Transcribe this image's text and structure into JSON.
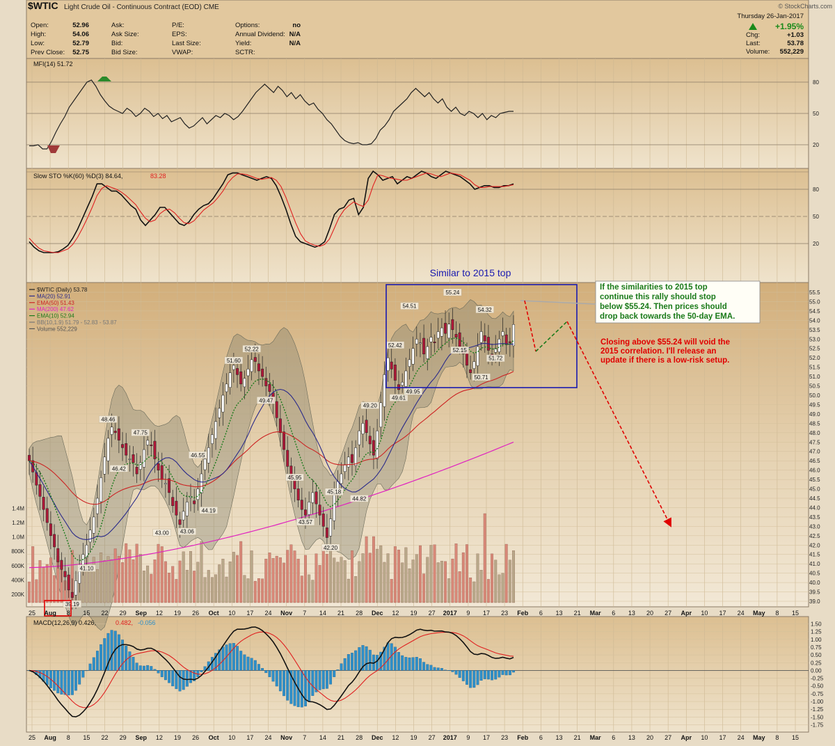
{
  "header": {
    "symbol": "$WTIC",
    "description": "Light Crude Oil - Continuous Contract (EOD)",
    "exchange": "CME",
    "credit": "© StockCharts.com",
    "date": "Thursday 26-Jan-2017",
    "change_pct": "+1.95%",
    "stats": [
      [
        {
          "label": "Open:",
          "value": "52.96"
        },
        {
          "label": "High:",
          "value": "54.06"
        },
        {
          "label": "Low:",
          "value": "52.79"
        },
        {
          "label": "Prev Close:",
          "value": "52.75"
        }
      ],
      [
        {
          "label": "Ask:",
          "value": ""
        },
        {
          "label": "Ask Size:",
          "value": ""
        },
        {
          "label": "Bid:",
          "value": ""
        },
        {
          "label": "Bid Size:",
          "value": ""
        }
      ],
      [
        {
          "label": "P/E:",
          "value": ""
        },
        {
          "label": "EPS:",
          "value": ""
        },
        {
          "label": "Last Size:",
          "value": ""
        },
        {
          "label": "VWAP:",
          "value": ""
        }
      ],
      [
        {
          "label": "Options:",
          "value": "no"
        },
        {
          "label": "Annual Dividend:",
          "value": "N/A"
        },
        {
          "label": "Yield:",
          "value": "N/A"
        },
        {
          "label": "SCTR:",
          "value": ""
        }
      ]
    ],
    "right_stats": [
      {
        "label": "Chg:",
        "value": "+1.03"
      },
      {
        "label": "Last:",
        "value": "53.78"
      },
      {
        "label": "Volume:",
        "value": "552,229"
      }
    ]
  },
  "chart_data": [
    {
      "type": "line",
      "name": "MFI(14)",
      "legend": "MFI(14) 51.72",
      "ylim": [
        0,
        100
      ],
      "yticks": [
        20,
        50,
        80
      ],
      "values": [
        19,
        19,
        20,
        16,
        16,
        23,
        32,
        40,
        47,
        56,
        62,
        68,
        74,
        80,
        82,
        76,
        68,
        62,
        57,
        54,
        52,
        50,
        55,
        52,
        47,
        50,
        55,
        52,
        47,
        50,
        45,
        48,
        42,
        44,
        46,
        40,
        36,
        38,
        42,
        46,
        40,
        44,
        48,
        46,
        50,
        48,
        44,
        47,
        52,
        58,
        64,
        70,
        74,
        78,
        74,
        70,
        76,
        72,
        66,
        70,
        64,
        68,
        62,
        58,
        60,
        54,
        50,
        44,
        40,
        34,
        28,
        24,
        22,
        21,
        22,
        20,
        20,
        21,
        26,
        34,
        38,
        44,
        52,
        56,
        60,
        64,
        70,
        74,
        70,
        66,
        70,
        64,
        60,
        64,
        56,
        52,
        56,
        50,
        48,
        52,
        50,
        46,
        50,
        44,
        48,
        46,
        50,
        51,
        52,
        52
      ]
    },
    {
      "type": "line",
      "name": "Slow STO",
      "legend": "Slow STO %K(60) %D(3) 84.64,",
      "legend_d": "83.28",
      "ylim": [
        0,
        100
      ],
      "yticks": [
        20,
        50,
        80
      ],
      "series": [
        {
          "name": "%K",
          "values": [
            22,
            16,
            12,
            10,
            10,
            10,
            11,
            14,
            18,
            26,
            36,
            48,
            60,
            72,
            86,
            86,
            82,
            78,
            78,
            74,
            68,
            62,
            58,
            46,
            40,
            46,
            52,
            60,
            60,
            54,
            48,
            42,
            40,
            44,
            52,
            58,
            62,
            64,
            70,
            78,
            86,
            96,
            98,
            98,
            96,
            94,
            92,
            90,
            92,
            94,
            92,
            84,
            72,
            58,
            42,
            28,
            22,
            20,
            18,
            16,
            18,
            22,
            36,
            52,
            58,
            60,
            68,
            70,
            52,
            60,
            92,
            100,
            96,
            90,
            92,
            94,
            86,
            90,
            94,
            92,
            96,
            100,
            98,
            94,
            92,
            96,
            100,
            98,
            96,
            94,
            90,
            86,
            80,
            82,
            84,
            84,
            82,
            82,
            84,
            84,
            86
          ]
        },
        {
          "name": "%D",
          "values": [
            26,
            20,
            15,
            12,
            11,
            10,
            10,
            12,
            14,
            19,
            27,
            37,
            48,
            60,
            73,
            81,
            84,
            82,
            80,
            77,
            73,
            68,
            63,
            55,
            48,
            44,
            46,
            53,
            57,
            58,
            54,
            48,
            43,
            42,
            45,
            51,
            57,
            61,
            65,
            71,
            78,
            87,
            93,
            97,
            97,
            96,
            94,
            92,
            91,
            92,
            93,
            90,
            83,
            71,
            57,
            43,
            31,
            23,
            20,
            18,
            17,
            19,
            25,
            37,
            49,
            57,
            62,
            66,
            63,
            61,
            68,
            84,
            96,
            95,
            93,
            92,
            91,
            90,
            90,
            92,
            94,
            96,
            98,
            97,
            95,
            94,
            96,
            98,
            97,
            96,
            93,
            90,
            85,
            82,
            82,
            83,
            83,
            83,
            83,
            84,
            85
          ]
        }
      ]
    },
    {
      "type": "candlestick",
      "name": "$WTIC (Daily)",
      "legend": [
        {
          "text": "$WTIC (Daily) 53.78",
          "color": "#222222"
        },
        {
          "text": "MA(20) 52.91",
          "color": "#2a2a8a"
        },
        {
          "text": "EMA(50) 51.43",
          "color": "#cc2222"
        },
        {
          "text": "MA(200) 47.62",
          "color": "#e020c0"
        },
        {
          "text": "EMA(10) 52.94",
          "color": "#1a7a1a"
        },
        {
          "text": "BB(10,1.9) 51.79 - 52.83 - 53.87",
          "color": "#777777"
        },
        {
          "text": "Volume 552,229",
          "color": "#555555"
        }
      ],
      "ylim": [
        38.5,
        56
      ],
      "yticks": [
        39.0,
        39.5,
        40.0,
        40.5,
        41.0,
        41.5,
        42.0,
        42.5,
        43.0,
        43.5,
        44.0,
        44.5,
        45.0,
        45.5,
        46.0,
        46.5,
        47.0,
        47.5,
        48.0,
        48.5,
        49.0,
        49.5,
        50.0,
        50.5,
        51.0,
        51.5,
        52.0,
        52.5,
        53.0,
        53.5,
        54.0,
        54.5,
        55.0,
        55.5
      ],
      "x_labels": [
        "25",
        "Aug",
        "8",
        "15",
        "22",
        "29",
        "Sep",
        "12",
        "19",
        "26",
        "Oct",
        "10",
        "17",
        "24",
        "Nov",
        "7",
        "14",
        "21",
        "28",
        "Dec",
        "12",
        "19",
        "27",
        "2017",
        "9",
        "17",
        "23",
        "Feb",
        "6",
        "13",
        "21",
        "Mar",
        "6",
        "13",
        "20",
        "27",
        "Apr",
        "10",
        "17",
        "24",
        "May",
        "8",
        "15"
      ],
      "closes": [
        46.5,
        45.9,
        45.2,
        44.6,
        43.9,
        43.2,
        42.5,
        41.9,
        41.1,
        40.7,
        40.3,
        39.6,
        39.2,
        40.1,
        40.8,
        41.5,
        42.0,
        42.8,
        43.5,
        44.5,
        45.6,
        46.7,
        47.7,
        48.3,
        48.0,
        47.6,
        47.2,
        46.8,
        46.6,
        46.4,
        45.8,
        46.4,
        47.1,
        47.6,
        47.3,
        46.6,
        46.0,
        45.5,
        45.3,
        44.8,
        44.1,
        43.6,
        43.1,
        43.8,
        44.3,
        44.6,
        44.2,
        45.0,
        45.8,
        46.6,
        47.2,
        47.9,
        48.6,
        49.3,
        50.0,
        50.6,
        51.2,
        51.6,
        51.1,
        50.6,
        50.9,
        51.4,
        51.9,
        51.8,
        51.3,
        51.0,
        50.5,
        50.2,
        49.6,
        48.8,
        48.0,
        47.1,
        46.2,
        45.5,
        45.0,
        44.4,
        43.9,
        43.6,
        44.3,
        44.8,
        44.2,
        43.6,
        43.0,
        42.4,
        43.4,
        44.7,
        45.4,
        45.8,
        46.3,
        46.7,
        46.4,
        47.2,
        48.1,
        48.5,
        48.0,
        47.4,
        46.8,
        48.1,
        49.6,
        51.1,
        52.0,
        51.4,
        50.8,
        50.3,
        50.7,
        51.3,
        51.9,
        52.5,
        53.0,
        52.8,
        52.2,
        52.6,
        53.1,
        52.8,
        53.4,
        53.6,
        53.3,
        53.8,
        53.5,
        53.1,
        52.6,
        52.2,
        51.6,
        51.2,
        51.8,
        52.6,
        53.4,
        52.9,
        52.4,
        52.1,
        52.5,
        53.0,
        53.4,
        52.7,
        52.8,
        53.78
      ],
      "ohlc_note": "Daily candles Jul 25 2016 - Jan 26 2017",
      "price_labels": [
        {
          "text": "39.19",
          "price": 39.19
        },
        {
          "text": "41.10",
          "price": 41.1
        },
        {
          "text": "48.46",
          "price": 48.46
        },
        {
          "text": "46.42",
          "price": 46.42
        },
        {
          "text": "47.75",
          "price": 47.75
        },
        {
          "text": "43.00",
          "price": 43.0
        },
        {
          "text": "46.55",
          "price": 46.55
        },
        {
          "text": "43.06",
          "price": 43.06
        },
        {
          "text": "44.19",
          "price": 44.19
        },
        {
          "text": "51.60",
          "price": 51.6
        },
        {
          "text": "52.22",
          "price": 52.22
        },
        {
          "text": "49.47",
          "price": 49.47
        },
        {
          "text": "45.95",
          "price": 45.95
        },
        {
          "text": "43.57",
          "price": 43.57
        },
        {
          "text": "42.20",
          "price": 42.2
        },
        {
          "text": "45.18",
          "price": 45.18
        },
        {
          "text": "49.20",
          "price": 49.2
        },
        {
          "text": "44.82",
          "price": 44.82
        },
        {
          "text": "52.42",
          "price": 52.42
        },
        {
          "text": "54.51",
          "price": 54.51
        },
        {
          "text": "49.61",
          "price": 49.61
        },
        {
          "text": "49.95",
          "price": 49.95
        },
        {
          "text": "55.24",
          "price": 55.24
        },
        {
          "text": "52.15",
          "price": 52.15
        },
        {
          "text": "50.71",
          "price": 50.71
        },
        {
          "text": "54.32",
          "price": 54.32
        },
        {
          "text": "51.72",
          "price": 51.72
        }
      ],
      "volume_ticks": [
        "1.4M",
        "1.2M",
        "1.0M",
        "800K",
        "600K",
        "400K",
        "200K"
      ],
      "annotations": {
        "box_title": "Similar to 2015 top",
        "note_green": [
          "If the similarities to 2015 top",
          "continue this rally should stop",
          "below $55.24. Then prices should",
          "drop back towards the 50-day EMA."
        ],
        "note_red": [
          "Closing above $55.24 will void the",
          "2015 correlation. I'll release an",
          "update if there is a low-risk setup."
        ]
      }
    },
    {
      "type": "bar",
      "name": "MACD",
      "legend": "MACD(12,26,9) 0.426,",
      "legend_signal": "0.482,",
      "legend_hist": "-0.056",
      "ylim": [
        -1.85,
        1.6
      ],
      "yticks": [
        1.5,
        1.25,
        1.0,
        0.75,
        0.5,
        0.25,
        0.0,
        -0.25,
        -0.5,
        -0.75,
        -1.0,
        -1.25,
        -1.5,
        -1.75
      ]
    }
  ]
}
